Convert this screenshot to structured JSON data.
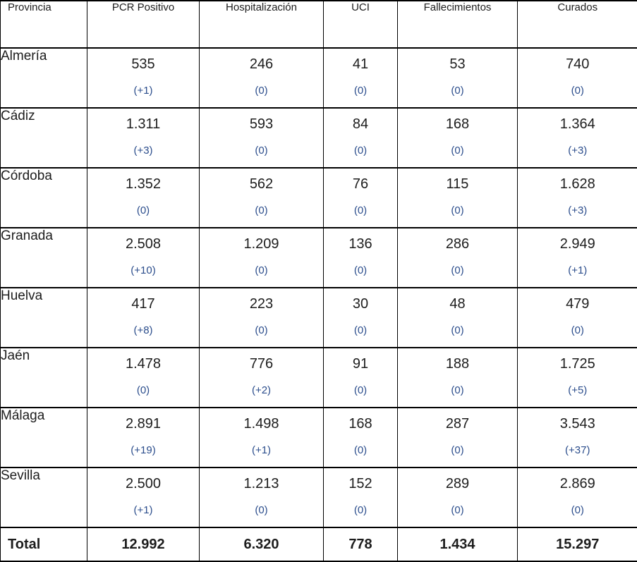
{
  "colors": {
    "delta_blue": "#2b4d8c",
    "border_black": "#000000",
    "text_black": "#1d1d1d"
  },
  "table": {
    "columns": [
      "Provincia",
      "PCR Positivo",
      "Hospitalización",
      "UCI",
      "Fallecimientos",
      "Curados"
    ],
    "rows": [
      {
        "province": "Almería",
        "cells": [
          {
            "value": "535",
            "delta": "(+1)"
          },
          {
            "value": "246",
            "delta": "(0)"
          },
          {
            "value": "41",
            "delta": "(0)"
          },
          {
            "value": "53",
            "delta": "(0)"
          },
          {
            "value": "740",
            "delta": "(0)"
          }
        ]
      },
      {
        "province": "Cádiz",
        "cells": [
          {
            "value": "1.311",
            "delta": "(+3)"
          },
          {
            "value": "593",
            "delta": "(0)"
          },
          {
            "value": "84",
            "delta": "(0)"
          },
          {
            "value": "168",
            "delta": "(0)"
          },
          {
            "value": "1.364",
            "delta": "(+3)"
          }
        ]
      },
      {
        "province": "Córdoba",
        "cells": [
          {
            "value": "1.352",
            "delta": "(0)"
          },
          {
            "value": "562",
            "delta": "(0)"
          },
          {
            "value": "76",
            "delta": "(0)"
          },
          {
            "value": "115",
            "delta": "(0)"
          },
          {
            "value": "1.628",
            "delta": "(+3)"
          }
        ]
      },
      {
        "province": "Granada",
        "cells": [
          {
            "value": "2.508",
            "delta": "(+10)"
          },
          {
            "value": "1.209",
            "delta": "(0)"
          },
          {
            "value": "136",
            "delta": "(0)"
          },
          {
            "value": "286",
            "delta": "(0)"
          },
          {
            "value": "2.949",
            "delta": "(+1)"
          }
        ]
      },
      {
        "province": "Huelva",
        "cells": [
          {
            "value": "417",
            "delta": "(+8)"
          },
          {
            "value": "223",
            "delta": "(0)"
          },
          {
            "value": "30",
            "delta": "(0)"
          },
          {
            "value": "48",
            "delta": "(0)"
          },
          {
            "value": "479",
            "delta": "(0)"
          }
        ]
      },
      {
        "province": "Jaén",
        "cells": [
          {
            "value": "1.478",
            "delta": "(0)"
          },
          {
            "value": "776",
            "delta": "(+2)"
          },
          {
            "value": "91",
            "delta": "(0)"
          },
          {
            "value": "188",
            "delta": "(0)"
          },
          {
            "value": "1.725",
            "delta": "(+5)"
          }
        ]
      },
      {
        "province": "Málaga",
        "cells": [
          {
            "value": "2.891",
            "delta": "(+19)"
          },
          {
            "value": "1.498",
            "delta": "(+1)"
          },
          {
            "value": "168",
            "delta": "(0)"
          },
          {
            "value": "287",
            "delta": "(0)"
          },
          {
            "value": "3.543",
            "delta": "(+37)"
          }
        ]
      },
      {
        "province": "Sevilla",
        "cells": [
          {
            "value": "2.500",
            "delta": "(+1)"
          },
          {
            "value": "1.213",
            "delta": "(0)"
          },
          {
            "value": "152",
            "delta": "(0)"
          },
          {
            "value": "289",
            "delta": "(0)"
          },
          {
            "value": "2.869",
            "delta": "(0)"
          }
        ]
      }
    ],
    "total": {
      "label": "Total",
      "values": [
        "12.992",
        "6.320",
        "778",
        "1.434",
        "15.297"
      ]
    }
  }
}
